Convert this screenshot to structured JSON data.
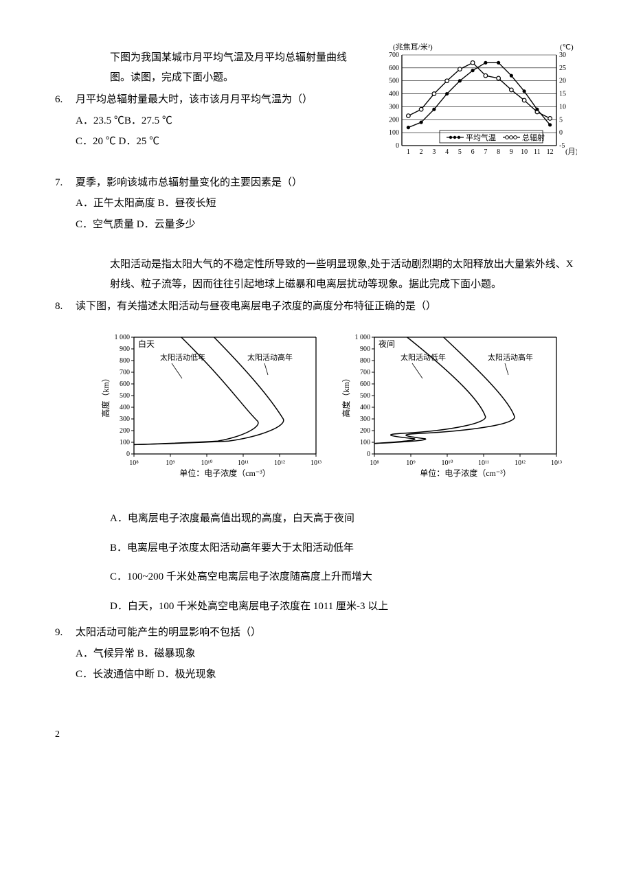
{
  "intro1": "下图为我国某城市月平均气温及月平均总辐射量曲线图。读图，完成下面小题。",
  "q6": {
    "num": "6.",
    "stem": "月平均总辐射量最大时，该市该月月平均气温为（）",
    "optAB": "A．23.5 ℃B．27.5 ℃",
    "optCD": "C．20 ℃ D．25 ℃"
  },
  "q7": {
    "num": "7.",
    "stem": "夏季，影响该城市总辐射量变化的主要因素是（）",
    "optAB": "A．正午太阳高度 B．昼夜长短",
    "optCD": "C．空气质量 D．云量多少"
  },
  "intro2": "太阳活动是指太阳大气的不稳定性所导致的一些明显现象,处于活动剧烈期的太阳释放出大量紫外线、X 射线、粒子流等，因而往往引起地球上磁暴和电离层扰动等现象。据此完成下面小题。",
  "q8": {
    "num": "8.",
    "stem": "读下图，有关描述太阳活动与昼夜电离层电子浓度的高度分布特征正确的是（）",
    "optA": "A．电离层电子浓度最高值出现的高度，白天高于夜间",
    "optB": "B．电离层电子浓度太阳活动高年要大于太阳活动低年",
    "optC": "C．100~200 千米处高空电离层电子浓度随高度上升而增大",
    "optD": "D．白天，100 千米处高空电离层电子浓度在 1011 厘米-3 以上"
  },
  "q9": {
    "num": "9.",
    "stem": "太阳活动可能产生的明显影响不包括（）",
    "optAB": "A．气候异常 B．磁暴现象",
    "optCD": "C．长波通信中断 D．极光现象"
  },
  "pageNum": "2",
  "chart1": {
    "leftAxisLabel": "(兆焦耳/米²)",
    "rightAxisLabel": "(℃)",
    "leftTicks": [
      "700",
      "600",
      "500",
      "400",
      "300",
      "200",
      "100",
      "0"
    ],
    "rightTicks": [
      "30",
      "25",
      "20",
      "15",
      "10",
      "5",
      "0",
      "-5"
    ],
    "xTicks": [
      "1",
      "2",
      "3",
      "4",
      "5",
      "6",
      "7",
      "8",
      "9",
      "10",
      "11",
      "12"
    ],
    "xUnit": "(月)",
    "legend1": "平均气温",
    "legend2": "总辐射",
    "tempData": [
      2,
      4,
      9,
      15,
      20,
      24,
      27,
      27,
      22,
      16,
      9,
      3
    ],
    "radData": [
      230,
      280,
      400,
      500,
      590,
      640,
      540,
      520,
      430,
      350,
      260,
      210
    ],
    "radMax": 700,
    "tempMin": -5,
    "tempMax": 30,
    "colors": {
      "line": "#000000",
      "bg": "#ffffff",
      "grid": "#000000"
    }
  },
  "chart2": {
    "leftTitle": "白天",
    "rightTitle": "夜间",
    "lowLabel": "太阳活动低年",
    "highLabel": "太阳活动高年",
    "yLabel": "高度（km）",
    "yTicks": [
      "1 000",
      "900",
      "800",
      "700",
      "600",
      "500",
      "400",
      "300",
      "200",
      "100",
      "0"
    ],
    "xTicks": [
      "10⁸",
      "10⁹",
      "10¹⁰",
      "10¹¹",
      "10¹²",
      "10¹³"
    ],
    "xLabel": "单位：电子浓度（cm⁻³）",
    "colors": {
      "line": "#000000",
      "bg": "#ffffff"
    }
  }
}
